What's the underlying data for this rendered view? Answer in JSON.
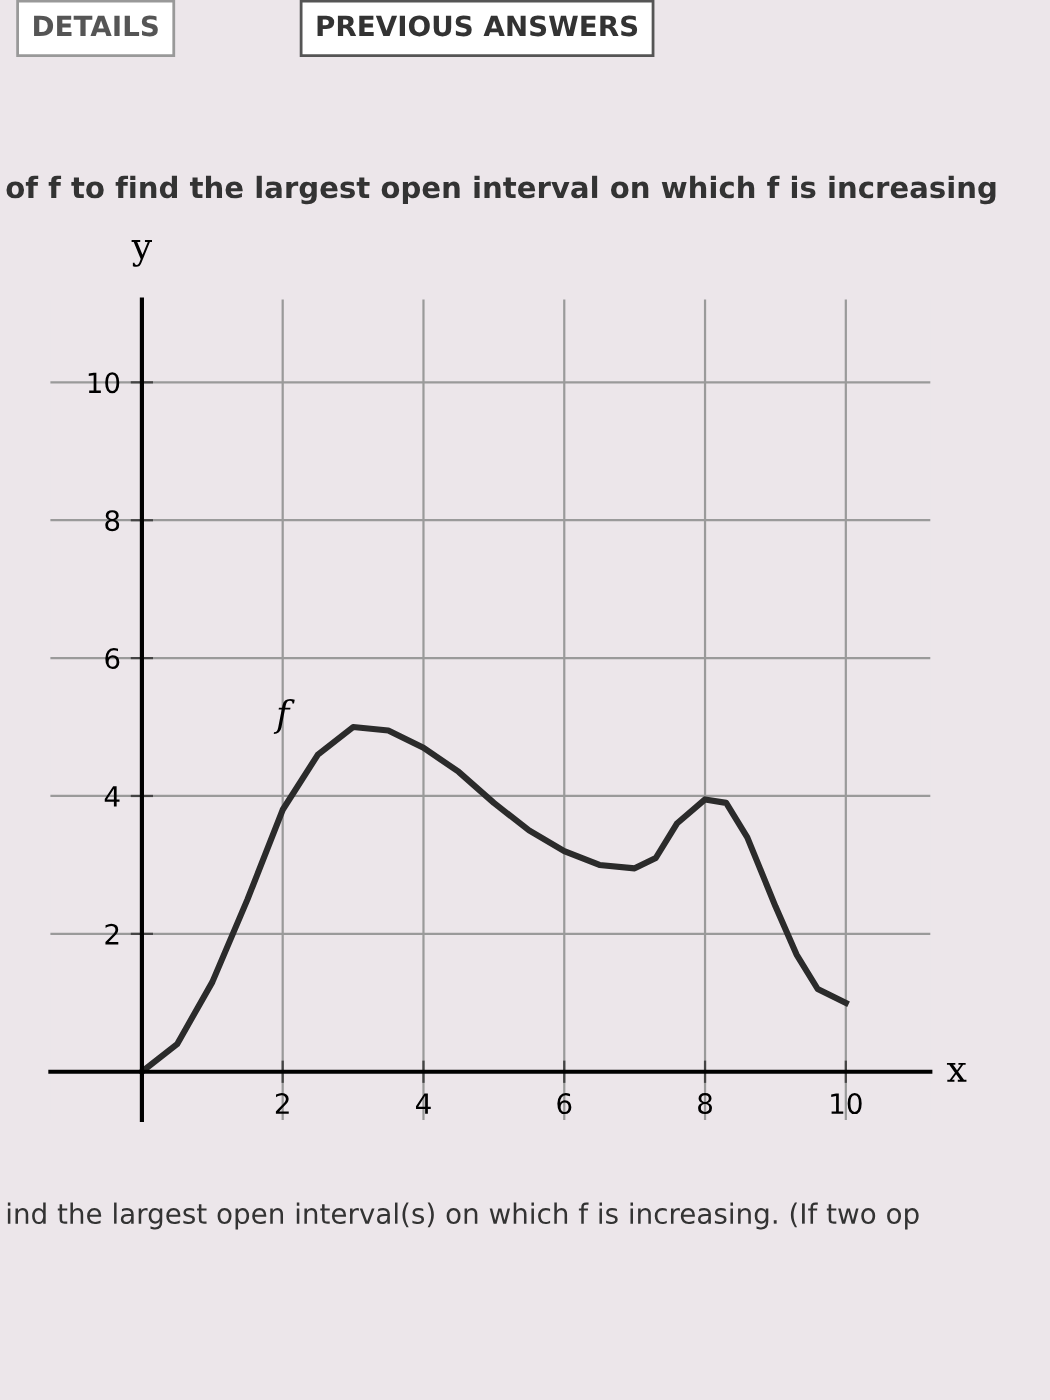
{
  "chart_data": {
    "type": "line",
    "title": "of f to find the largest open interval on which f is increasing",
    "xlabel": "x",
    "ylabel": "y",
    "series": [
      {
        "name": "f",
        "color": "#2b2b2b",
        "x": [
          0,
          0.5,
          1,
          1.5,
          2,
          2.5,
          3,
          3.5,
          4,
          4.5,
          5,
          5.5,
          6,
          6.5,
          7,
          7.3,
          7.6,
          8,
          8.3,
          8.6,
          9,
          9.3,
          9.6,
          10
        ],
        "values": [
          0,
          0.4,
          1.3,
          2.5,
          3.8,
          4.6,
          5,
          4.95,
          4.7,
          4.35,
          3.9,
          3.5,
          3.2,
          3.0,
          2.95,
          3.1,
          3.6,
          3.95,
          3.9,
          3.4,
          2.4,
          1.7,
          1.2,
          1.0
        ]
      }
    ],
    "xlim": [
      -1.3,
      11.2
    ],
    "ylim": [
      -0.7,
      11.2
    ],
    "xticks": [
      2,
      4,
      6,
      8,
      10
    ],
    "yticks": [
      2,
      4,
      6,
      8,
      10
    ],
    "grid": true,
    "marker": "none",
    "line_style": "solid",
    "legend": false,
    "annotations": [
      "DETAILS",
      "PREVIOUS ANSWERS",
      "ind the largest open interval(s) on which f is increasing. (If two op"
    ]
  }
}
